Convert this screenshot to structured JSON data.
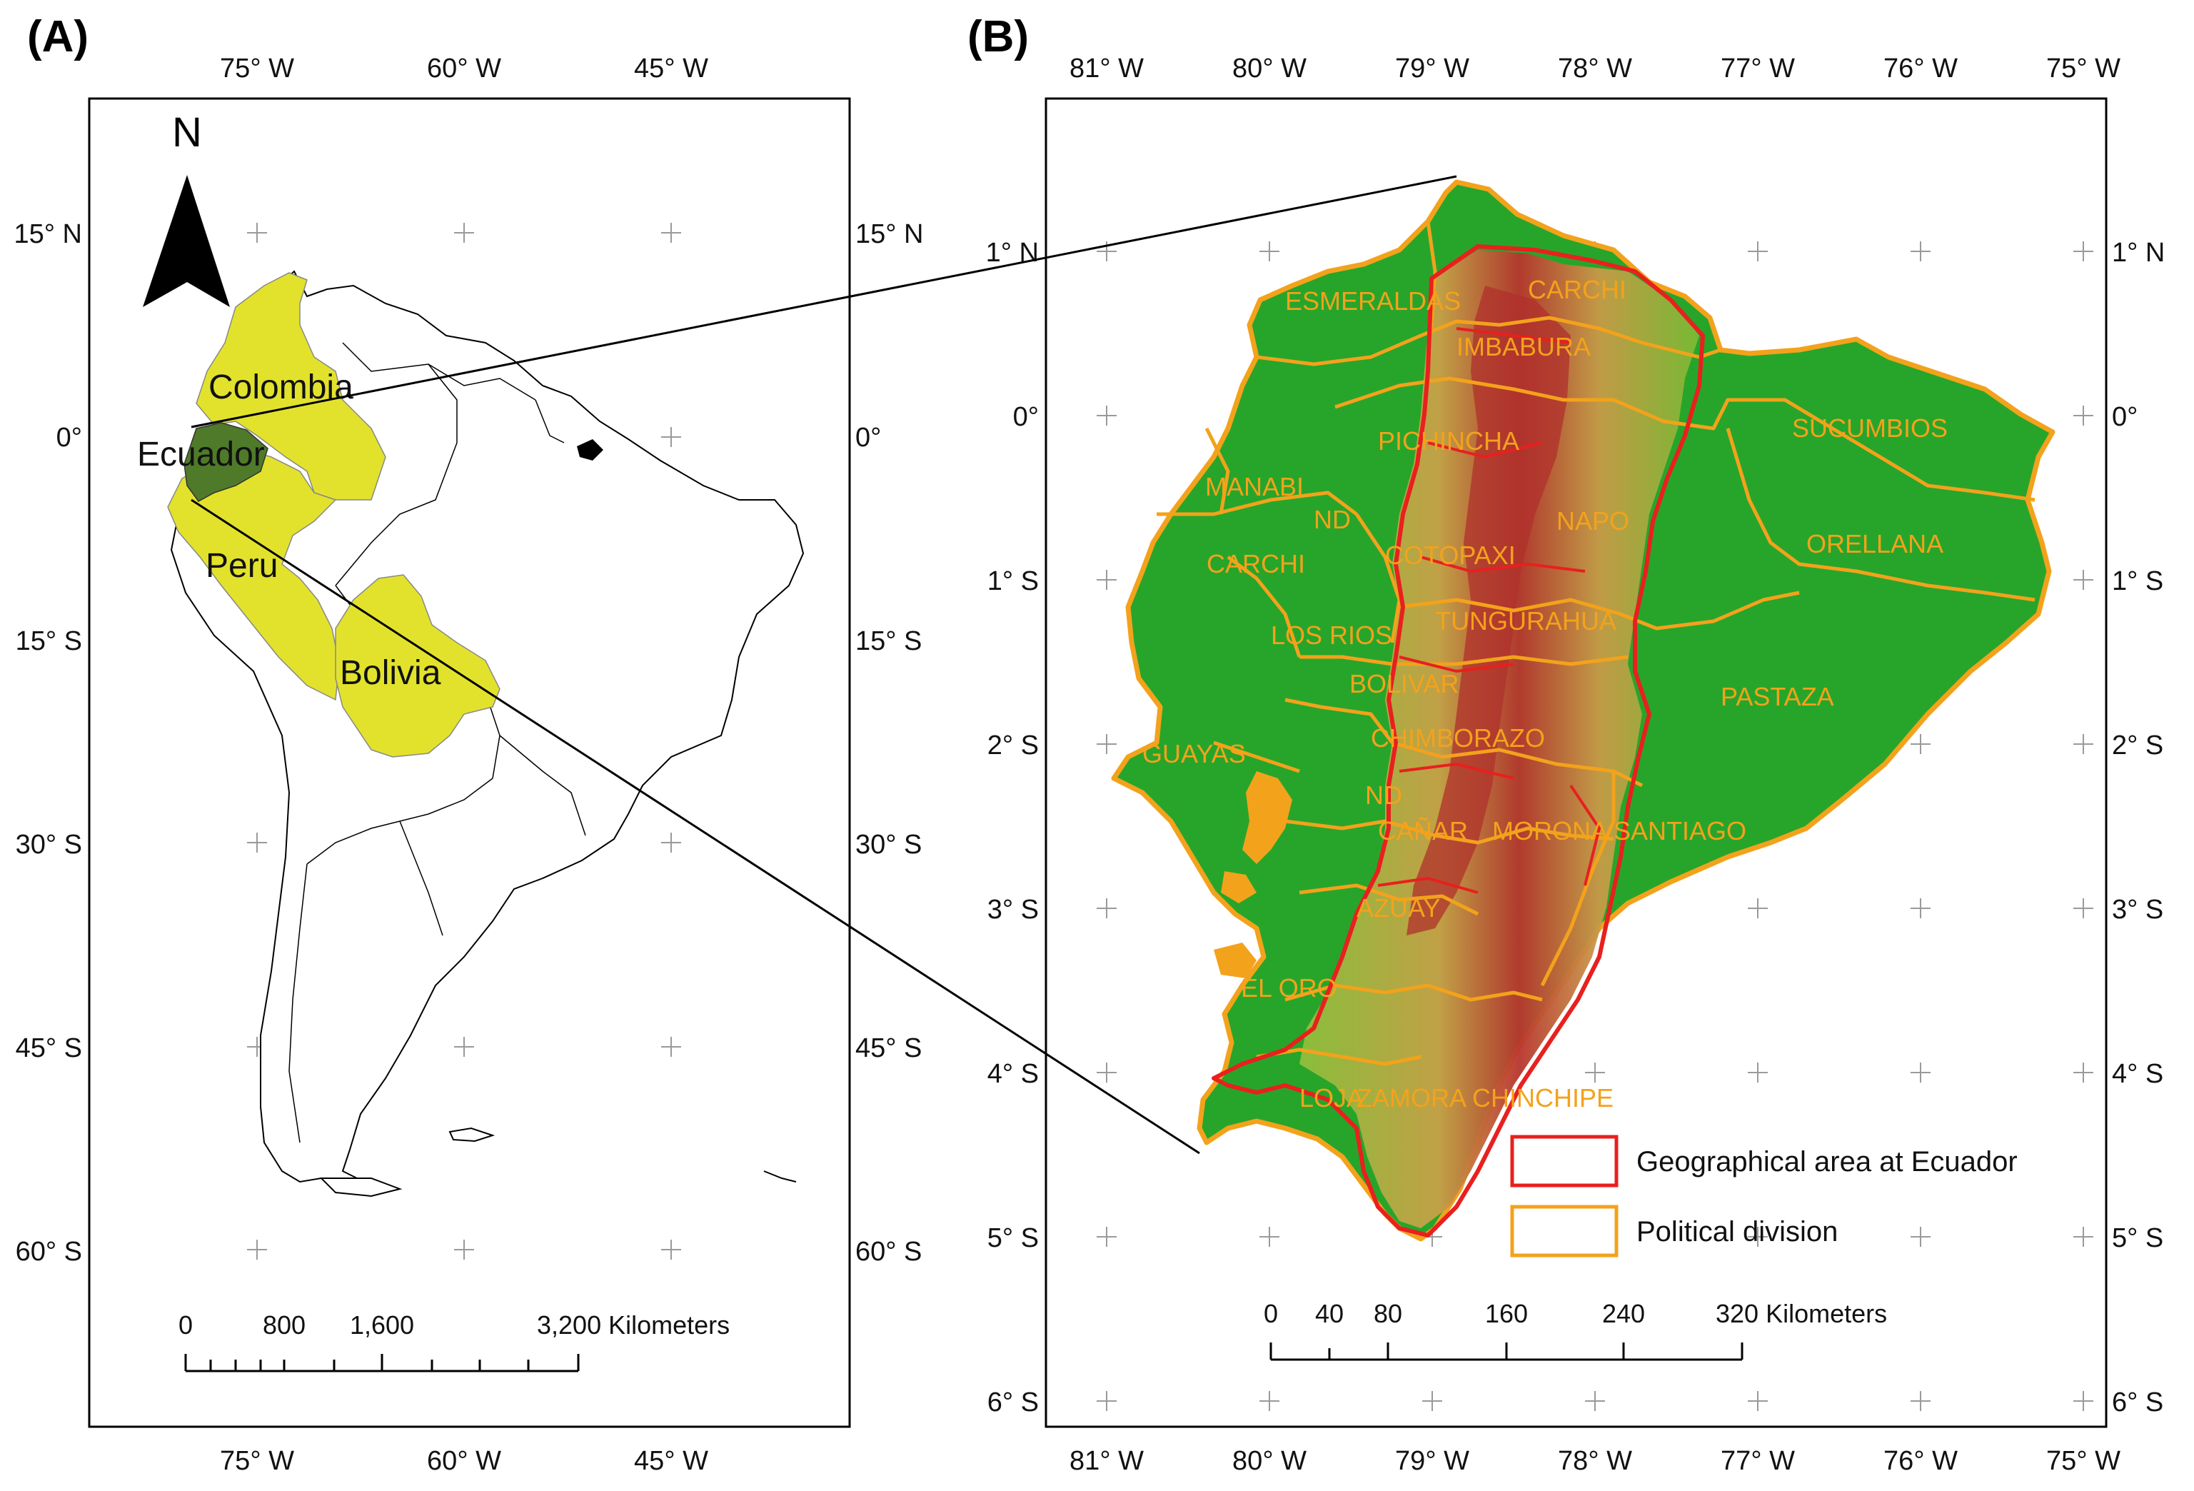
{
  "panel_a": {
    "label": "(A)",
    "lon_labels": [
      "75° W",
      "60° W",
      "45° W"
    ],
    "lat_labels_left": [
      "15° N",
      "0°",
      "15° S",
      "30° S",
      "45° S",
      "60° S"
    ],
    "lat_labels_right": [
      "15° N",
      "0°",
      "15° S",
      "30° S",
      "45° S",
      "60° S"
    ],
    "north_arrow": "N",
    "countries": [
      "Colombia",
      "Ecuador",
      "Peru",
      "Bolivia"
    ],
    "scale_labels": [
      "0",
      "800",
      "1,600",
      "3,200 Kilometers"
    ]
  },
  "panel_b": {
    "label": "(B)",
    "lon_labels": [
      "81° W",
      "80° W",
      "79° W",
      "78° W",
      "77° W",
      "76° W",
      "75° W"
    ],
    "lat_labels_left": [
      "1° N",
      "0°",
      "1° S",
      "2° S",
      "3° S",
      "4° S",
      "5° S",
      "6° S"
    ],
    "lat_labels_right": [
      "1° N",
      "0°",
      "1° S",
      "2° S",
      "3° S",
      "4° S",
      "5° S",
      "6° S"
    ],
    "provinces": [
      "ESMERALDAS",
      "CARCHI",
      "IMBABURA",
      "SUCUMBIOS",
      "PICHINCHA",
      "MANABI",
      "ND",
      "NAPO",
      "ORELLANA",
      "CARCHI",
      "COTOPAXI",
      "TUNGURAHUA",
      "LOS RIOS",
      "BOLIVAR",
      "PASTAZA",
      "CHIMBORAZO",
      "GUAYAS",
      "ND",
      "CAÑAR",
      "MORONA SANTIAGO",
      "AZUAY",
      "EL ORO",
      "LOJA",
      "ZAMORA CHINCHIPE"
    ],
    "legend": [
      "Geographical area at Ecuador",
      "Political division"
    ],
    "scale_labels": [
      "0",
      "40",
      "80",
      "160",
      "240",
      "320 Kilometers"
    ]
  },
  "colors": {
    "highlight_country": "#e2e22c",
    "ecuador": "#4f7a2a",
    "lowland": "#27a52a",
    "political_division": "#f3a21c",
    "geographical_area": "#e8201e"
  }
}
